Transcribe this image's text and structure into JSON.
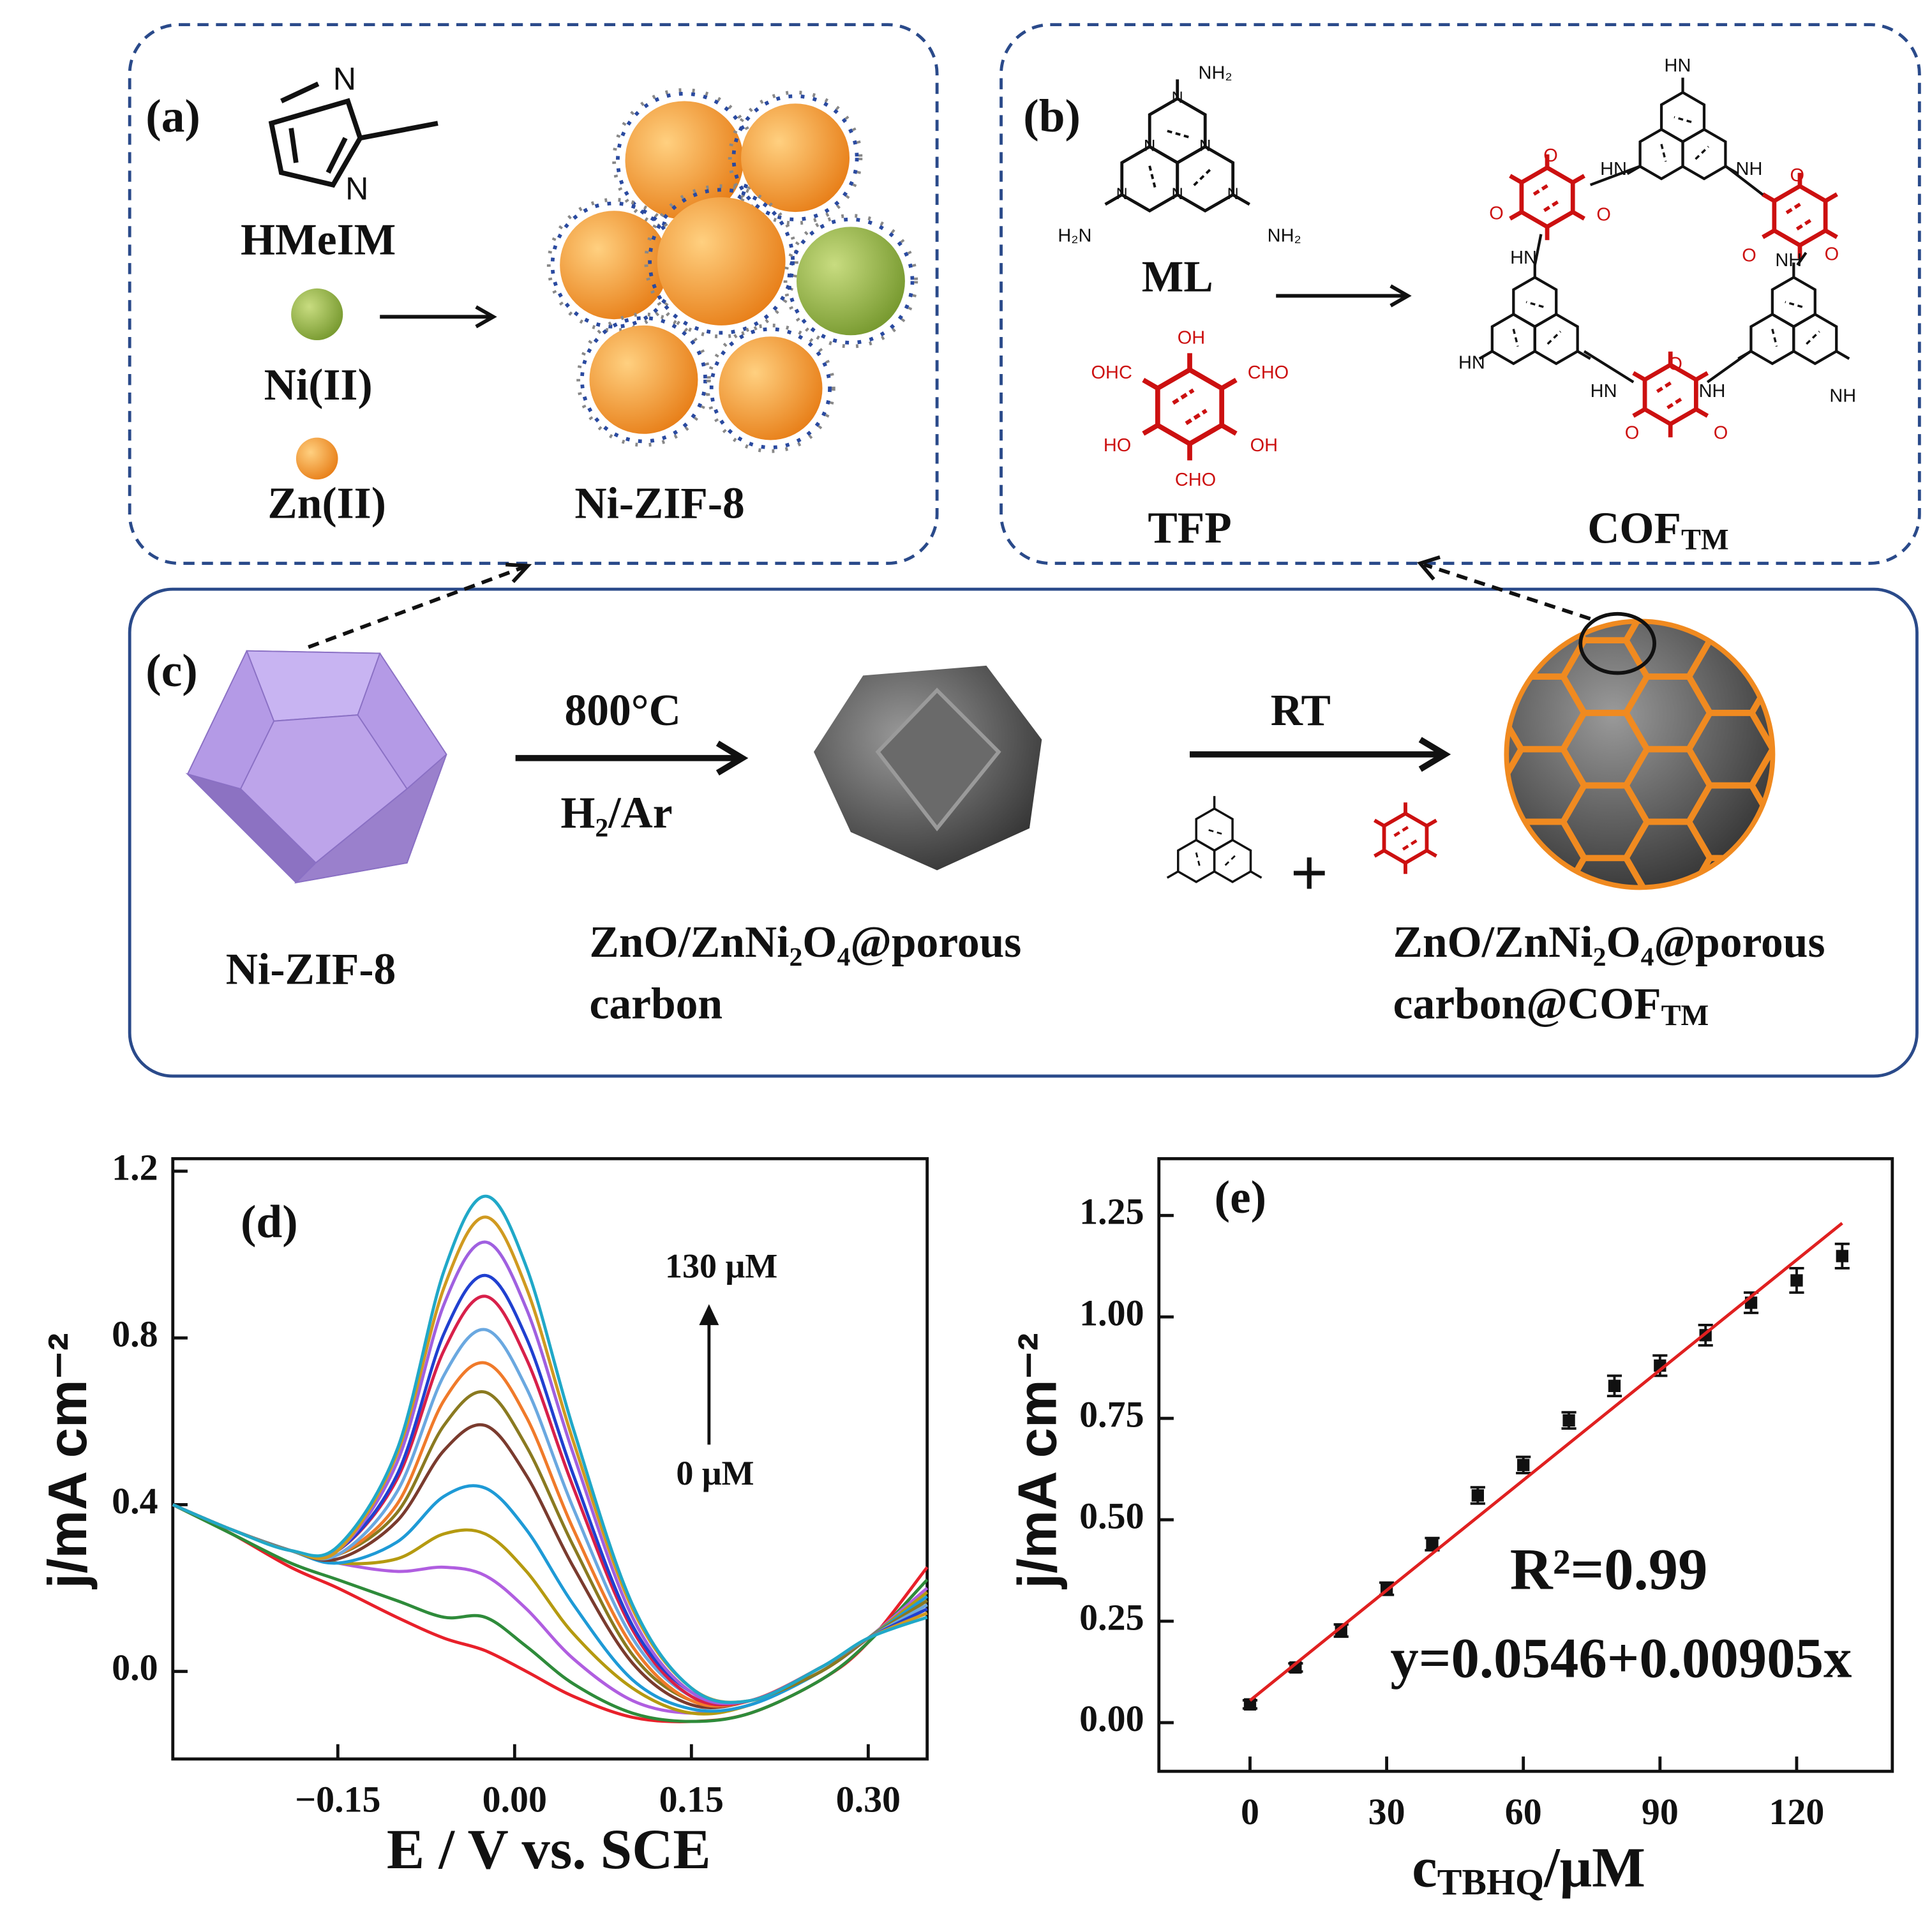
{
  "panel_a": {
    "label": "(a)",
    "nitrogen": "N",
    "ligand": "HMeIM",
    "ni": "Ni(II)",
    "zn": "Zn(II)",
    "product": "Ni-ZIF-8"
  },
  "panel_b": {
    "label": "(b)",
    "ml": {
      "amine_top": "NH₂",
      "amine_left": "H₂N",
      "amine_right": "NH₂",
      "ring_n": "N",
      "name": "ML"
    },
    "tfp": {
      "oh_top": "OH",
      "cho_left": "OHC",
      "cho_right": "CHO",
      "oh_left": "HO",
      "oh_right": "OH",
      "cho_bottom": "CHO",
      "name": "TFP"
    },
    "cof": {
      "name": "COF",
      "sub": "TM",
      "amine": "HN",
      "amine_right": "NH",
      "oxygen": "O"
    }
  },
  "panel_c": {
    "label": "(c)",
    "temperature": "800°C",
    "atmosphere": "H₂/Ar",
    "room_temp": "RT",
    "plus": "+",
    "start": "Ni-ZIF-8",
    "middle_line1": "ZnO/ZnNi₂O₄@porous",
    "middle_line2": "carbon",
    "final_line1": "ZnO/ZnNi₂O₄@porous",
    "final_line2": "carbon@COF",
    "final_sub": "TM"
  },
  "chart_data": [
    {
      "type": "line",
      "label": "(d)",
      "x_label": "E / V vs. SCE",
      "y_label": "j/mA cm⁻²",
      "annotation_top": "130 μM",
      "annotation_bottom": "0 μM",
      "x": [
        -0.29,
        -0.24,
        -0.19,
        -0.15,
        -0.1,
        -0.06,
        -0.025,
        0.01,
        0.05,
        0.1,
        0.15,
        0.2,
        0.26,
        0.3,
        0.35
      ],
      "series": [
        {
          "color": "#e8202a",
          "values": [
            0.4,
            0.33,
            0.25,
            0.2,
            0.13,
            0.08,
            0.05,
            0.0,
            -0.06,
            -0.11,
            -0.12,
            -0.1,
            -0.02,
            0.07,
            0.25
          ]
        },
        {
          "color": "#2e8b3a",
          "values": [
            0.4,
            0.33,
            0.26,
            0.22,
            0.17,
            0.13,
            0.13,
            0.06,
            -0.03,
            -0.1,
            -0.12,
            -0.1,
            -0.02,
            0.07,
            0.22
          ]
        },
        {
          "color": "#b05ee0",
          "values": [
            0.4,
            0.34,
            0.29,
            0.26,
            0.24,
            0.25,
            0.23,
            0.15,
            0.03,
            -0.07,
            -0.1,
            -0.08,
            0.0,
            0.08,
            0.2
          ]
        },
        {
          "color": "#b59a10",
          "values": [
            0.4,
            0.34,
            0.29,
            0.26,
            0.27,
            0.33,
            0.33,
            0.24,
            0.09,
            -0.04,
            -0.1,
            -0.08,
            0.0,
            0.08,
            0.19
          ]
        },
        {
          "color": "#1e9ad6",
          "values": [
            0.4,
            0.34,
            0.29,
            0.26,
            0.31,
            0.42,
            0.44,
            0.34,
            0.16,
            -0.02,
            -0.09,
            -0.08,
            0.0,
            0.08,
            0.18
          ]
        },
        {
          "color": "#7a3b2e",
          "values": [
            0.4,
            0.34,
            0.29,
            0.27,
            0.36,
            0.53,
            0.59,
            0.47,
            0.25,
            0.02,
            -0.08,
            -0.07,
            0.0,
            0.08,
            0.17
          ]
        },
        {
          "color": "#8a7a20",
          "values": [
            0.4,
            0.34,
            0.29,
            0.28,
            0.38,
            0.59,
            0.67,
            0.54,
            0.3,
            0.04,
            -0.07,
            -0.07,
            0.0,
            0.08,
            0.17
          ]
        },
        {
          "color": "#f07a2a",
          "values": [
            0.4,
            0.34,
            0.29,
            0.28,
            0.4,
            0.65,
            0.74,
            0.61,
            0.34,
            0.06,
            -0.07,
            -0.07,
            0.01,
            0.08,
            0.16
          ]
        },
        {
          "color": "#6aa8e0",
          "values": [
            0.4,
            0.34,
            0.29,
            0.28,
            0.43,
            0.71,
            0.82,
            0.68,
            0.39,
            0.08,
            -0.06,
            -0.07,
            0.01,
            0.08,
            0.16
          ]
        },
        {
          "color": "#d8204a",
          "values": [
            0.4,
            0.34,
            0.29,
            0.29,
            0.46,
            0.77,
            0.9,
            0.75,
            0.44,
            0.1,
            -0.06,
            -0.07,
            0.01,
            0.08,
            0.15
          ]
        },
        {
          "color": "#2040d0",
          "values": [
            0.4,
            0.34,
            0.29,
            0.29,
            0.47,
            0.81,
            0.95,
            0.8,
            0.47,
            0.11,
            -0.05,
            -0.07,
            0.01,
            0.08,
            0.15
          ]
        },
        {
          "color": "#a060e0",
          "values": [
            0.4,
            0.34,
            0.29,
            0.29,
            0.5,
            0.88,
            1.03,
            0.87,
            0.52,
            0.13,
            -0.05,
            -0.07,
            0.01,
            0.08,
            0.14
          ]
        },
        {
          "color": "#d09a20",
          "values": [
            0.4,
            0.34,
            0.29,
            0.29,
            0.52,
            0.92,
            1.09,
            0.92,
            0.55,
            0.15,
            -0.04,
            -0.07,
            0.01,
            0.08,
            0.14
          ]
        },
        {
          "color": "#20a8c8",
          "values": [
            0.4,
            0.34,
            0.29,
            0.3,
            0.53,
            0.96,
            1.14,
            0.97,
            0.58,
            0.16,
            -0.04,
            -0.07,
            0.01,
            0.08,
            0.13
          ]
        }
      ],
      "xlim": [
        -0.29,
        0.35
      ],
      "ylim": [
        -0.21,
        1.23
      ],
      "xticks": [
        {
          "value": -0.15,
          "label": "−0.15"
        },
        {
          "value": 0,
          "label": "0.00"
        },
        0.15,
        {
          "value": 0.3,
          "label": "0.30"
        }
      ],
      "yticks": [
        {
          "value": 0,
          "label": "0.0"
        },
        0.4,
        0.8,
        1.2
      ]
    },
    {
      "type": "scatter",
      "label": "(e)",
      "x_label": {
        "main": "c",
        "sub": "TBHQ",
        "unit": "/μM"
      },
      "y_label": "j/mA cm⁻²",
      "annotations": [
        "R²=0.99",
        "y=0.0546+0.00905x"
      ],
      "x": [
        0,
        10,
        20,
        30,
        40,
        50,
        60,
        70,
        80,
        90,
        100,
        110,
        120,
        130
      ],
      "series": [
        {
          "color": "#111111",
          "values": [
            0.045,
            0.136,
            0.227,
            0.33,
            0.44,
            0.56,
            0.635,
            0.745,
            0.83,
            0.88,
            0.955,
            1.035,
            1.09,
            1.15
          ],
          "errors": [
            0.01,
            0.01,
            0.015,
            0.015,
            0.015,
            0.02,
            0.02,
            0.02,
            0.025,
            0.025,
            0.025,
            0.025,
            0.03,
            0.03
          ]
        },
        {
          "type": "line",
          "color": "#e02020",
          "x": [
            0,
            130
          ],
          "values": [
            0.0546,
            1.2311
          ]
        }
      ],
      "xlim": [
        -20,
        141
      ],
      "ylim": [
        -0.12,
        1.39
      ],
      "xticks": [
        0,
        30,
        60,
        90,
        120
      ],
      "yticks": [
        {
          "value": 0,
          "label": "0.00"
        },
        0.25,
        {
          "value": 0.5,
          "label": "0.50"
        },
        0.75,
        {
          "value": 1,
          "label": "1.00"
        },
        1.25
      ]
    }
  ]
}
